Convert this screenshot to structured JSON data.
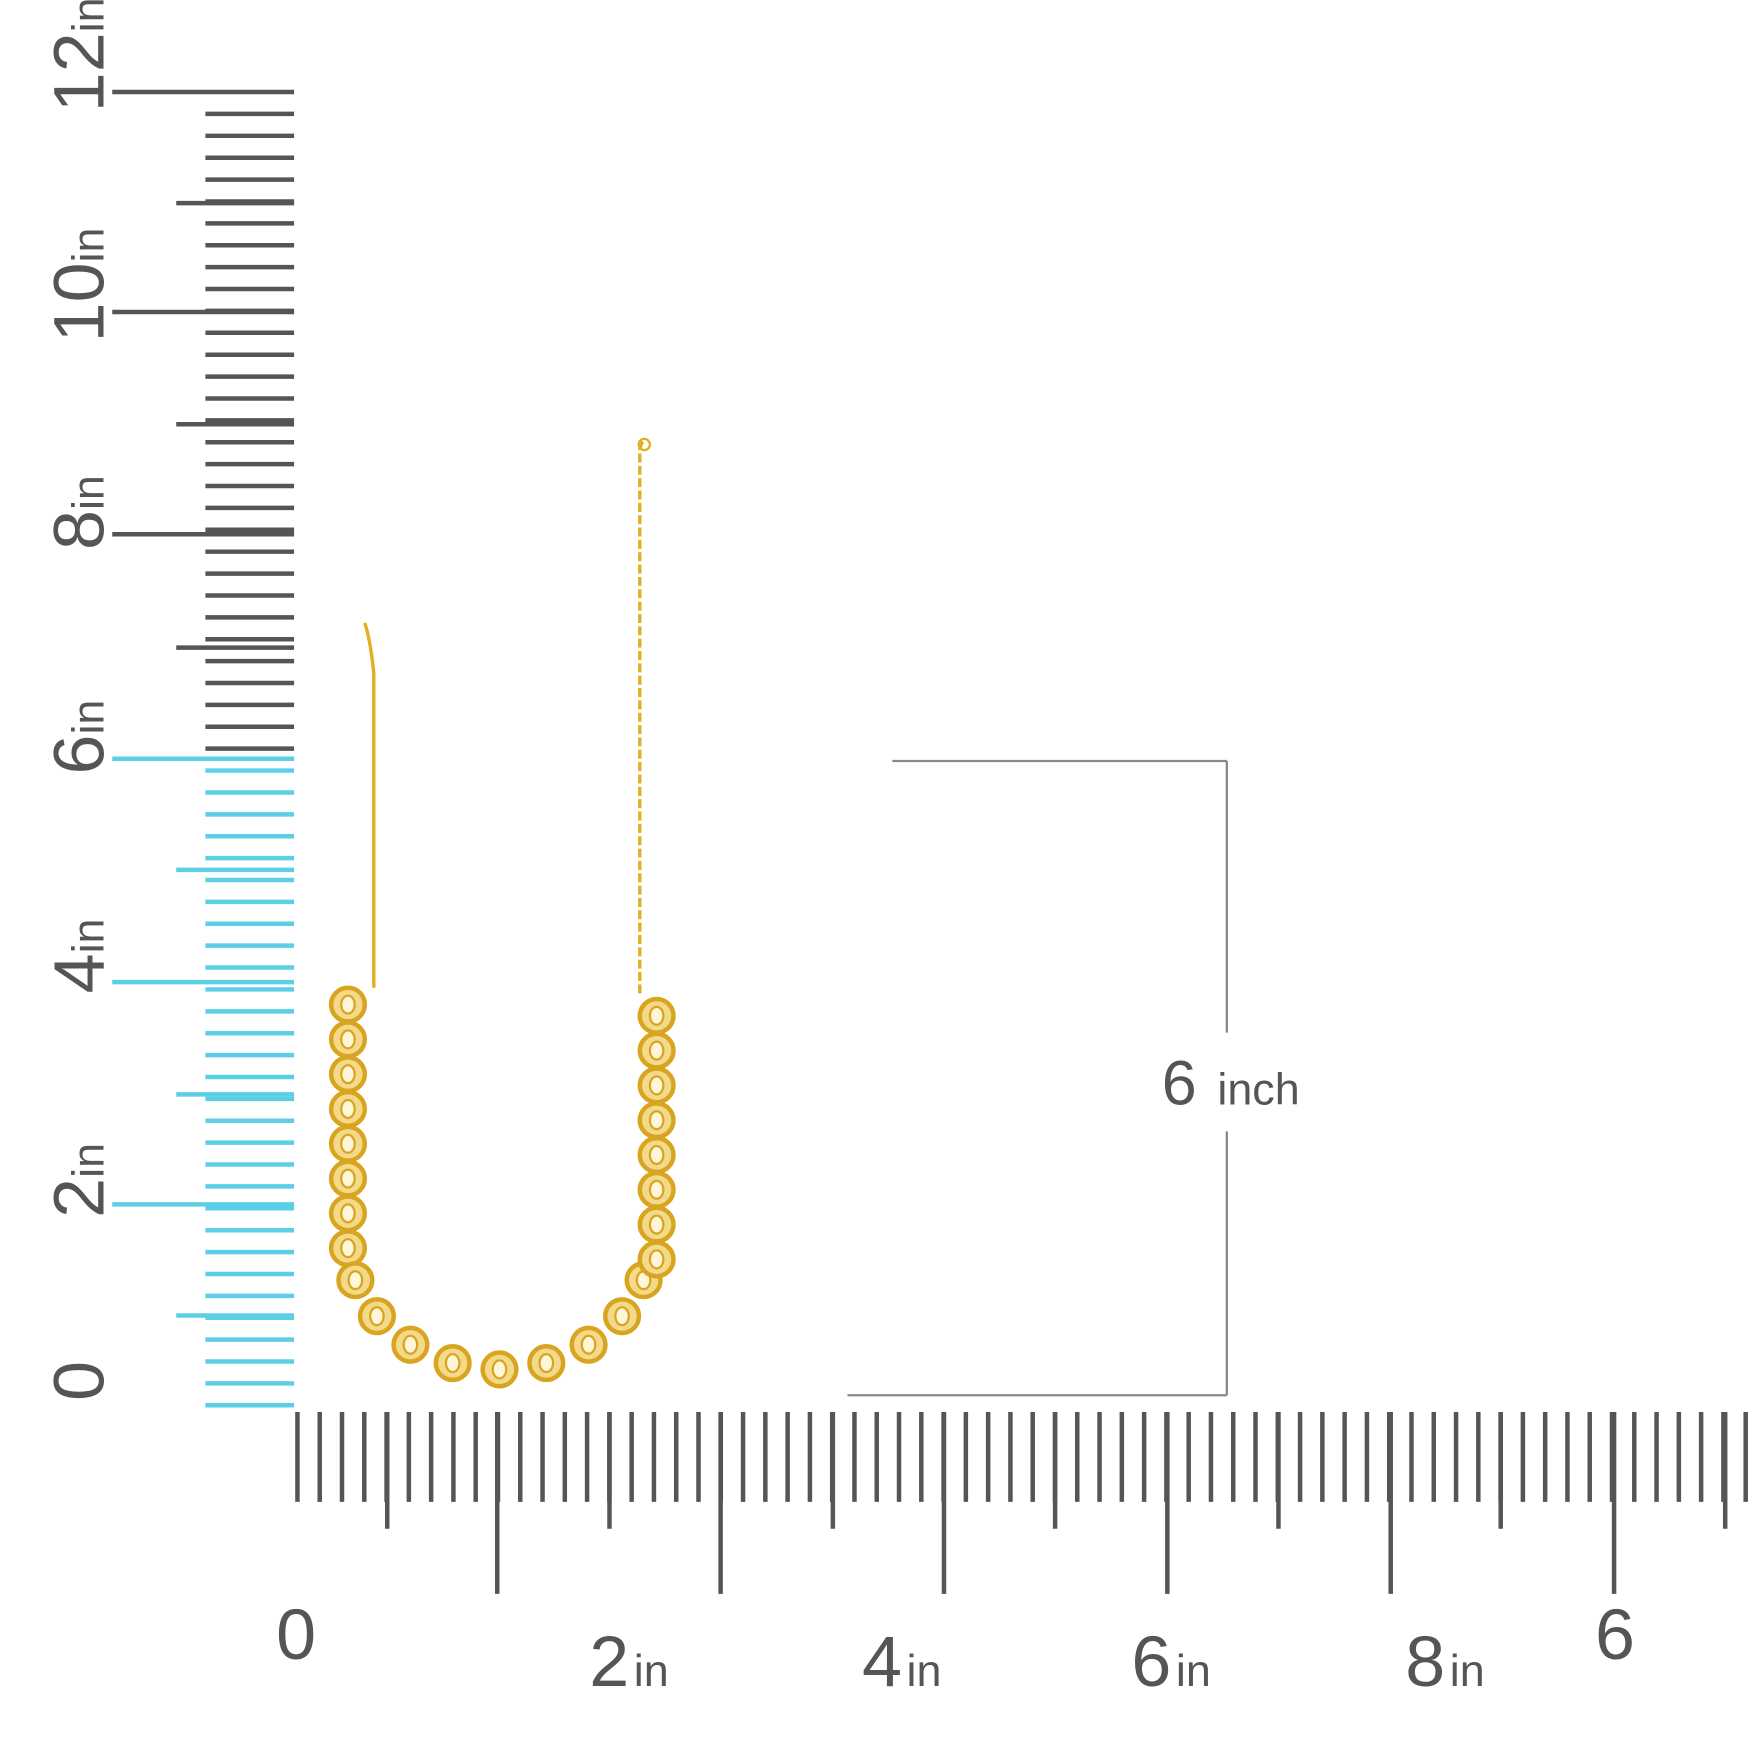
{
  "vertical_ruler": {
    "labels": [
      {
        "number": "0"
      },
      {
        "number": "2",
        "unit": "in"
      },
      {
        "number": "4",
        "unit": "in"
      },
      {
        "number": "6",
        "unit": "in"
      },
      {
        "number": "8",
        "unit": "in"
      },
      {
        "number": "10",
        "unit": "in"
      },
      {
        "number": "12",
        "unit": "in"
      }
    ]
  },
  "horizontal_ruler": {
    "labels": [
      {
        "number": "0"
      },
      {
        "number": "2",
        "unit": "in"
      },
      {
        "number": "4",
        "unit": "in"
      },
      {
        "number": "6",
        "unit": "in"
      },
      {
        "number": "8",
        "unit": "in"
      },
      {
        "number": "6"
      }
    ]
  },
  "dimension": {
    "number": "6",
    "unit": "inch"
  }
}
